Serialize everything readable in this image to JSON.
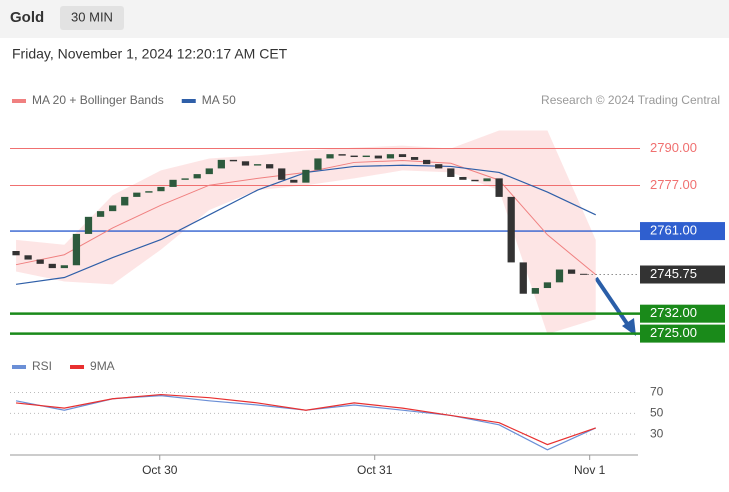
{
  "header": {
    "title": "Gold",
    "timeframe": "30 MIN",
    "timestamp": "Friday, November 1, 2024 12:20:17 AM CET"
  },
  "chart_data": {
    "type": "candlestick",
    "legend": [
      {
        "name": "MA 20 + Bollinger Bands",
        "color": "#f08080"
      },
      {
        "name": "MA 50",
        "color": "#2f5fa8"
      }
    ],
    "credit": "Research © 2024 Trading Central",
    "xlim": [
      -0.5,
      51.5
    ],
    "xticks": [
      {
        "value": 11.9,
        "label": "Oct 30"
      },
      {
        "value": 29.7,
        "label": "Oct 31"
      },
      {
        "value": 47.5,
        "label": "Nov 1"
      }
    ],
    "ylim": [
      2721,
      2800
    ],
    "up_color": "#2d5a3d",
    "down_color": "#333333",
    "open": [
      2754,
      2752.5,
      2751,
      2749.5,
      2748,
      2749,
      2760,
      2766,
      2768,
      2770,
      2773,
      2774.5,
      2775,
      2776.5,
      2779,
      2779.5,
      2781,
      2783,
      2786,
      2785.5,
      2784,
      2784.5,
      2783,
      2779,
      2778,
      2782.5,
      2786.5,
      2788,
      2787.5,
      2787,
      2787.5,
      2786.5,
      2788,
      2787,
      2786,
      2784.5,
      2783,
      2780,
      2779,
      2778.5,
      2779.5,
      2773,
      2750,
      2739,
      2741,
      2743,
      2747.5,
      2746
    ],
    "close": [
      2752.5,
      2751,
      2749.5,
      2748,
      2749,
      2760,
      2766,
      2768,
      2770,
      2773,
      2774.5,
      2775,
      2776.5,
      2779,
      2779.5,
      2781,
      2783,
      2786,
      2785.5,
      2784,
      2784.5,
      2783,
      2779,
      2778,
      2782.5,
      2786.5,
      2788,
      2787.5,
      2787,
      2787.5,
      2786.5,
      2788,
      2787,
      2786,
      2784.5,
      2783,
      2780,
      2779,
      2778.5,
      2779.5,
      2773,
      2750,
      2739,
      2741,
      2743,
      2747.5,
      2746,
      2745.75
    ],
    "ma_x": [
      0,
      4,
      8,
      12,
      16,
      20,
      24,
      28,
      32,
      36,
      40,
      44,
      48
    ],
    "ma50": [
      2742.3,
      2744.7,
      2751.7,
      2758,
      2766.7,
      2775.4,
      2781.6,
      2783.7,
      2784.1,
      2783.7,
      2781.6,
      2774.7,
      2766.7
    ],
    "ma20": [
      2749.2,
      2752.7,
      2762.1,
      2770.1,
      2777.1,
      2779.5,
      2781.6,
      2785.1,
      2785.8,
      2784.8,
      2778.9,
      2759.7,
      2745.7
    ],
    "bollinger_upper": [
      2757.9,
      2756.2,
      2773.6,
      2782.3,
      2786.5,
      2787.6,
      2789.3,
      2790.3,
      2791,
      2790,
      2796.3,
      2796.3,
      2757.9
    ],
    "bollinger_lower": [
      2746.8,
      2743.3,
      2742.3,
      2754.5,
      2768.4,
      2775.4,
      2777.1,
      2779.5,
      2782.3,
      2781.6,
      2775.4,
      2724.8,
      2730.1
    ],
    "band_color": "#fde0e0",
    "levels": [
      {
        "value": 2790,
        "label": "2790.00",
        "color": "#f07070",
        "boxed": false
      },
      {
        "value": 2777,
        "label": "2777.00",
        "color": "#f07070",
        "boxed": false
      },
      {
        "value": 2761,
        "label": "2761.00",
        "color": "#2f5fcf",
        "boxed": true
      },
      {
        "value": 2732,
        "label": "2732.00",
        "color": "#1a8a1a",
        "boxed": true
      },
      {
        "value": 2725,
        "label": "2725.00",
        "color": "#1a8a1a",
        "boxed": true
      }
    ],
    "last_price": {
      "value": 2745.75,
      "label": "2745.75",
      "color": "#333333"
    },
    "rsi": {
      "legend": [
        {
          "name": "RSI",
          "color": "#6b8fd6"
        },
        {
          "name": "9MA",
          "color": "#e83030"
        }
      ],
      "ylim": [
        10,
        82
      ],
      "yticks": [
        70,
        50,
        30
      ],
      "rsi": [
        62,
        53,
        64,
        67,
        62,
        58,
        53,
        58,
        53,
        48,
        39,
        15,
        36
      ],
      "ma9": [
        60,
        55,
        64,
        68,
        65,
        60,
        53,
        60,
        55,
        48,
        41,
        20,
        36
      ]
    }
  }
}
